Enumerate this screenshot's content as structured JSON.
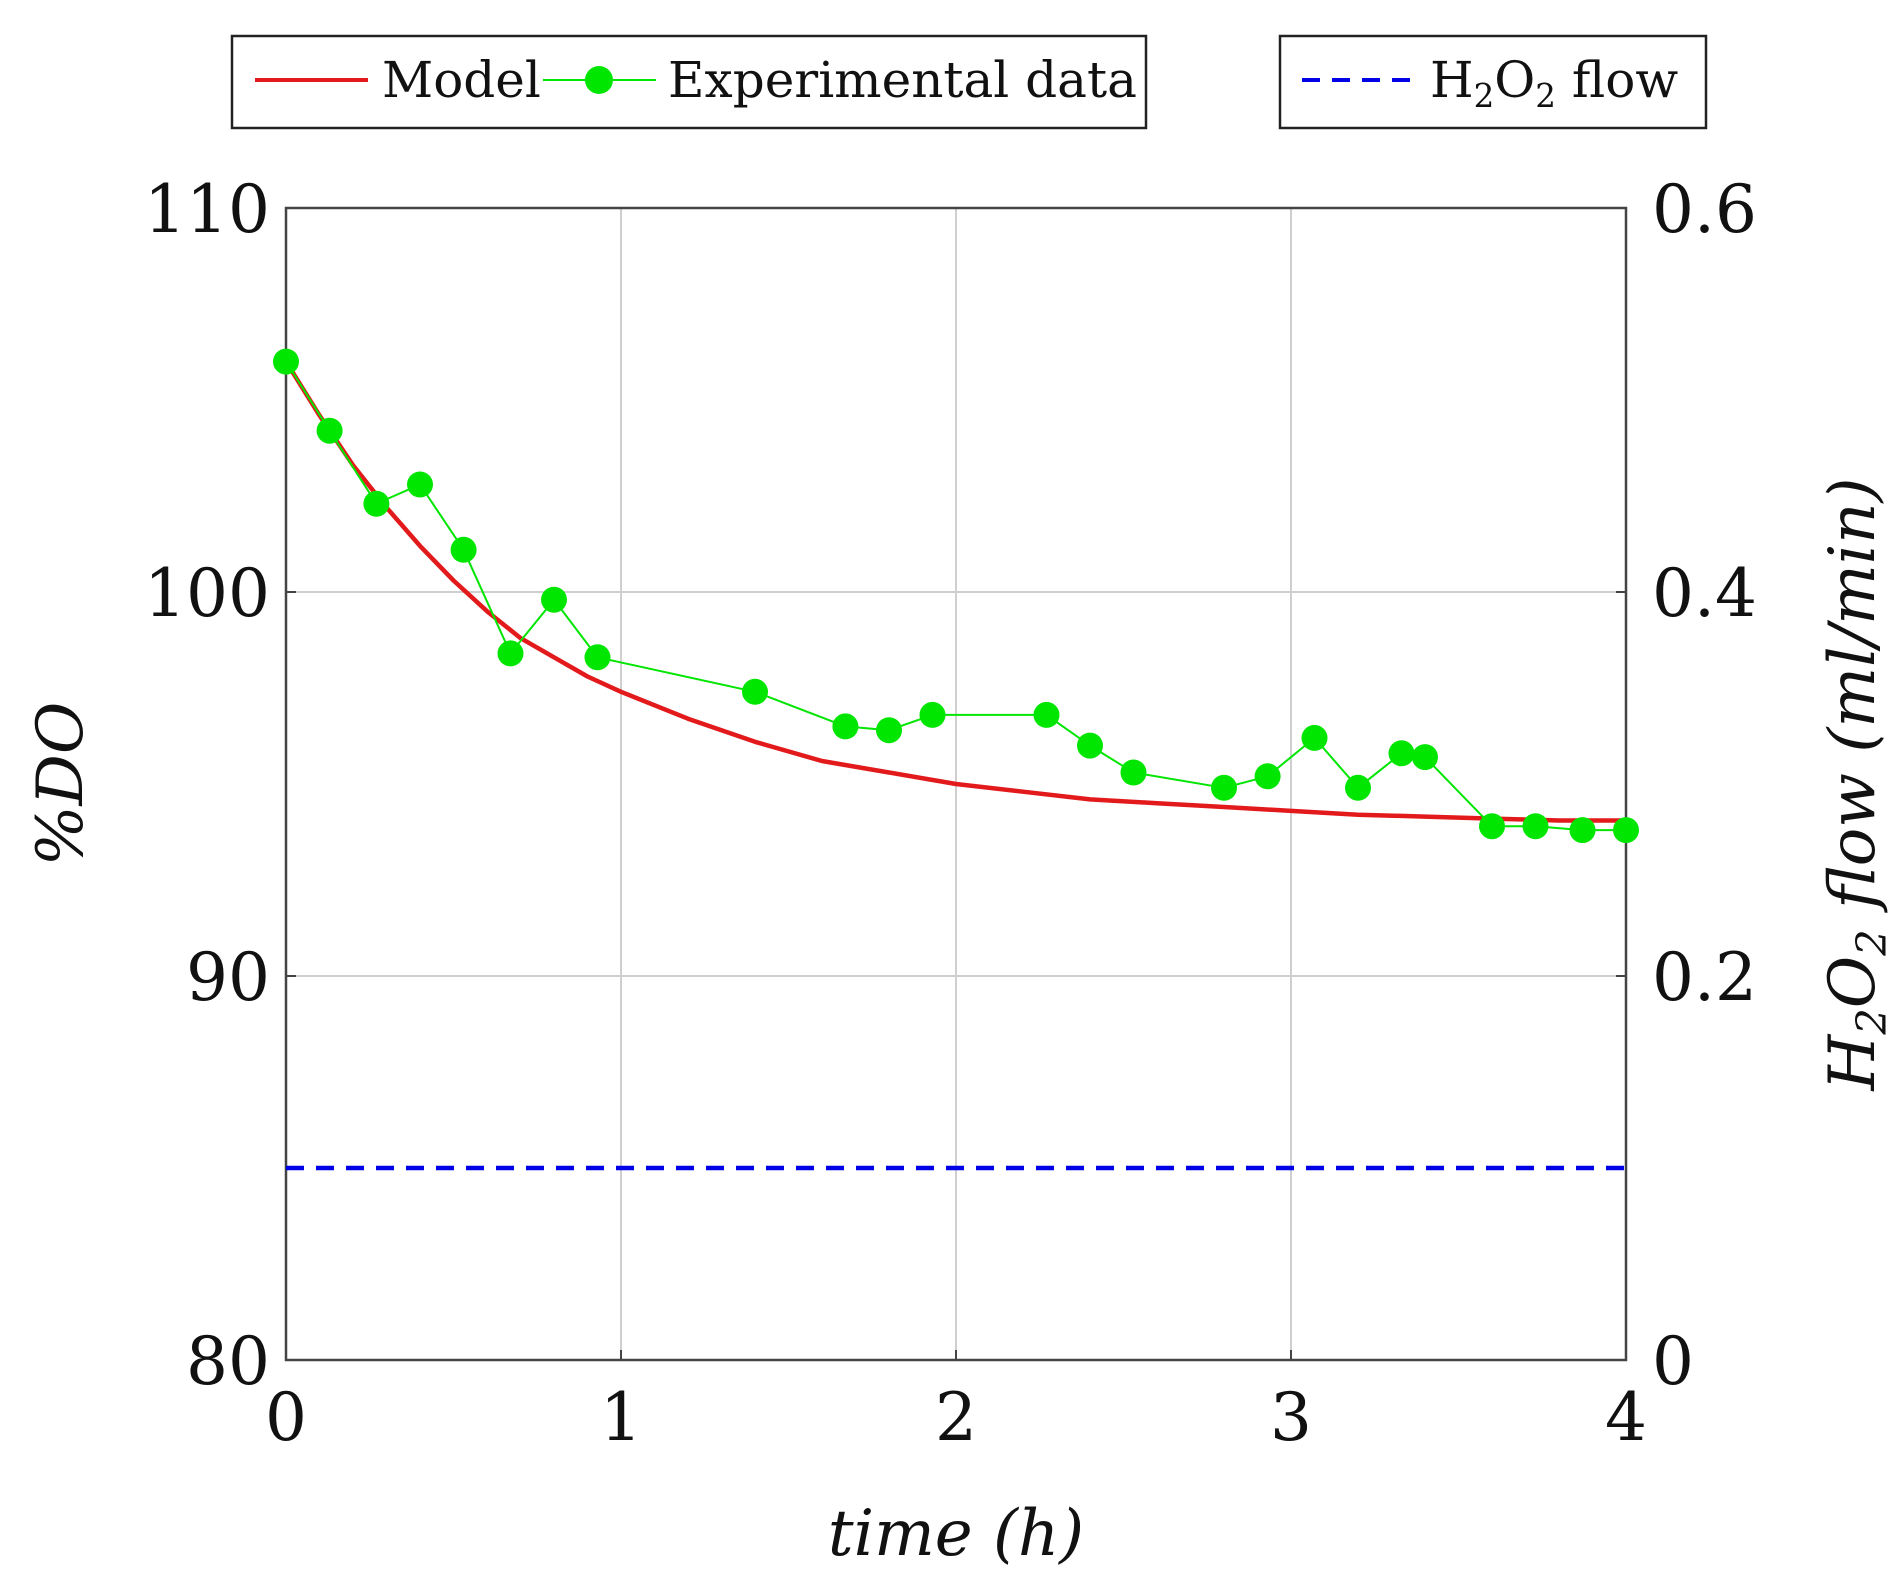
{
  "chart_data": {
    "type": "line",
    "title": "",
    "xlabel": "time (h)",
    "ylabel": "%DO",
    "y2label": {
      "prefix": "H",
      "sub1": "2",
      "mid": "O",
      "sub2": "2",
      "suffix": " flow (ml/min)"
    },
    "xlim": [
      0,
      4
    ],
    "ylim": [
      80,
      110
    ],
    "y2lim": [
      0,
      0.6
    ],
    "x_ticks": [
      "0",
      "1",
      "2",
      "3",
      "4"
    ],
    "y_ticks": [
      "80",
      "90",
      "100",
      "110"
    ],
    "y2_ticks": [
      "0",
      "0.2",
      "0.4",
      "0.6"
    ],
    "grid": true,
    "legend": {
      "left": [
        "Model",
        "Experimental data"
      ],
      "right": {
        "prefix": "H",
        "sub1": "2",
        "mid": "O",
        "sub2": "2",
        "suffix": " flow"
      }
    },
    "series": [
      {
        "name": "Model",
        "color": "#e31a1c",
        "style": "solid",
        "axis": "left",
        "x": [
          0,
          0.1,
          0.2,
          0.3,
          0.4,
          0.5,
          0.6,
          0.7,
          0.8,
          0.9,
          1.0,
          1.2,
          1.4,
          1.6,
          1.8,
          2.0,
          2.2,
          2.4,
          2.6,
          2.8,
          3.0,
          3.2,
          3.4,
          3.6,
          3.8,
          4.0
        ],
        "y": [
          106.0,
          104.6,
          103.3,
          102.2,
          101.2,
          100.3,
          99.5,
          98.8,
          98.3,
          97.8,
          97.4,
          96.7,
          96.1,
          95.6,
          95.3,
          95.0,
          94.8,
          94.6,
          94.5,
          94.4,
          94.3,
          94.2,
          94.15,
          94.1,
          94.05,
          94.05
        ]
      },
      {
        "name": "Experimental data",
        "color": "#00e600",
        "style": "solid-markers",
        "axis": "left",
        "x": [
          0,
          0.13,
          0.27,
          0.4,
          0.53,
          0.67,
          0.8,
          0.93,
          1.4,
          1.67,
          1.8,
          1.93,
          2.27,
          2.4,
          2.53,
          2.8,
          2.93,
          3.07,
          3.2,
          3.33,
          3.4,
          3.6,
          3.73,
          3.87,
          4.0
        ],
        "y": [
          106.0,
          104.2,
          102.3,
          102.8,
          101.1,
          98.4,
          99.8,
          98.3,
          97.4,
          96.5,
          96.4,
          96.8,
          96.8,
          96.0,
          95.3,
          94.9,
          95.2,
          96.2,
          94.9,
          95.8,
          95.7,
          93.9,
          93.9,
          93.8,
          93.8
        ]
      },
      {
        "name": "H2O2 flow",
        "color": "#0000e6",
        "style": "dashed",
        "axis": "right",
        "x": [
          0,
          4
        ],
        "y": [
          0.1,
          0.1
        ]
      }
    ]
  }
}
